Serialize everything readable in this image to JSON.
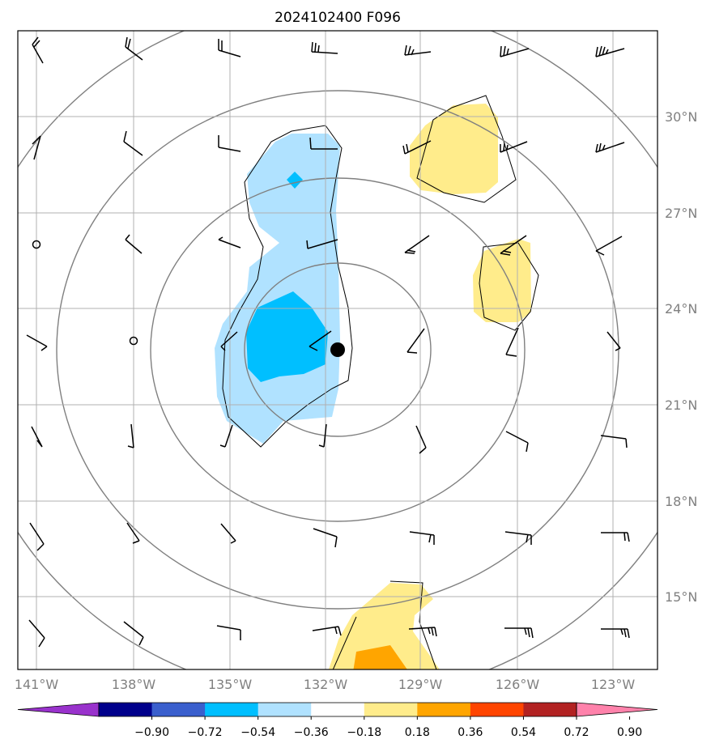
{
  "title": "2024102400 F096",
  "lon_labels": [
    "141°W",
    "138°W",
    "135°W",
    "132°W",
    "129°W",
    "126°W",
    "123°W"
  ],
  "lat_labels": [
    "30°N",
    "27°N",
    "24°N",
    "21°N",
    "18°N",
    "15°N"
  ],
  "colorbar": {
    "ticks": [
      "−0.90",
      "−0.72",
      "−0.54",
      "−0.36",
      "−0.18",
      "0.18",
      "0.36",
      "0.54",
      "0.72",
      "0.90"
    ],
    "colors": [
      "#9932cc",
      "#00008b",
      "#3a5fcd",
      "#00bfff",
      "#b0e2ff",
      "#ffffff",
      "#ffec8b",
      "#ffa500",
      "#ff4500",
      "#b22222",
      "#ff82ab"
    ]
  },
  "colors": {
    "grid": "#b0b0b0",
    "range_rings": "#808080",
    "label_gray": "#808080",
    "barbs": "#000000"
  },
  "storm_center_icon": "filled-circle-marker"
}
